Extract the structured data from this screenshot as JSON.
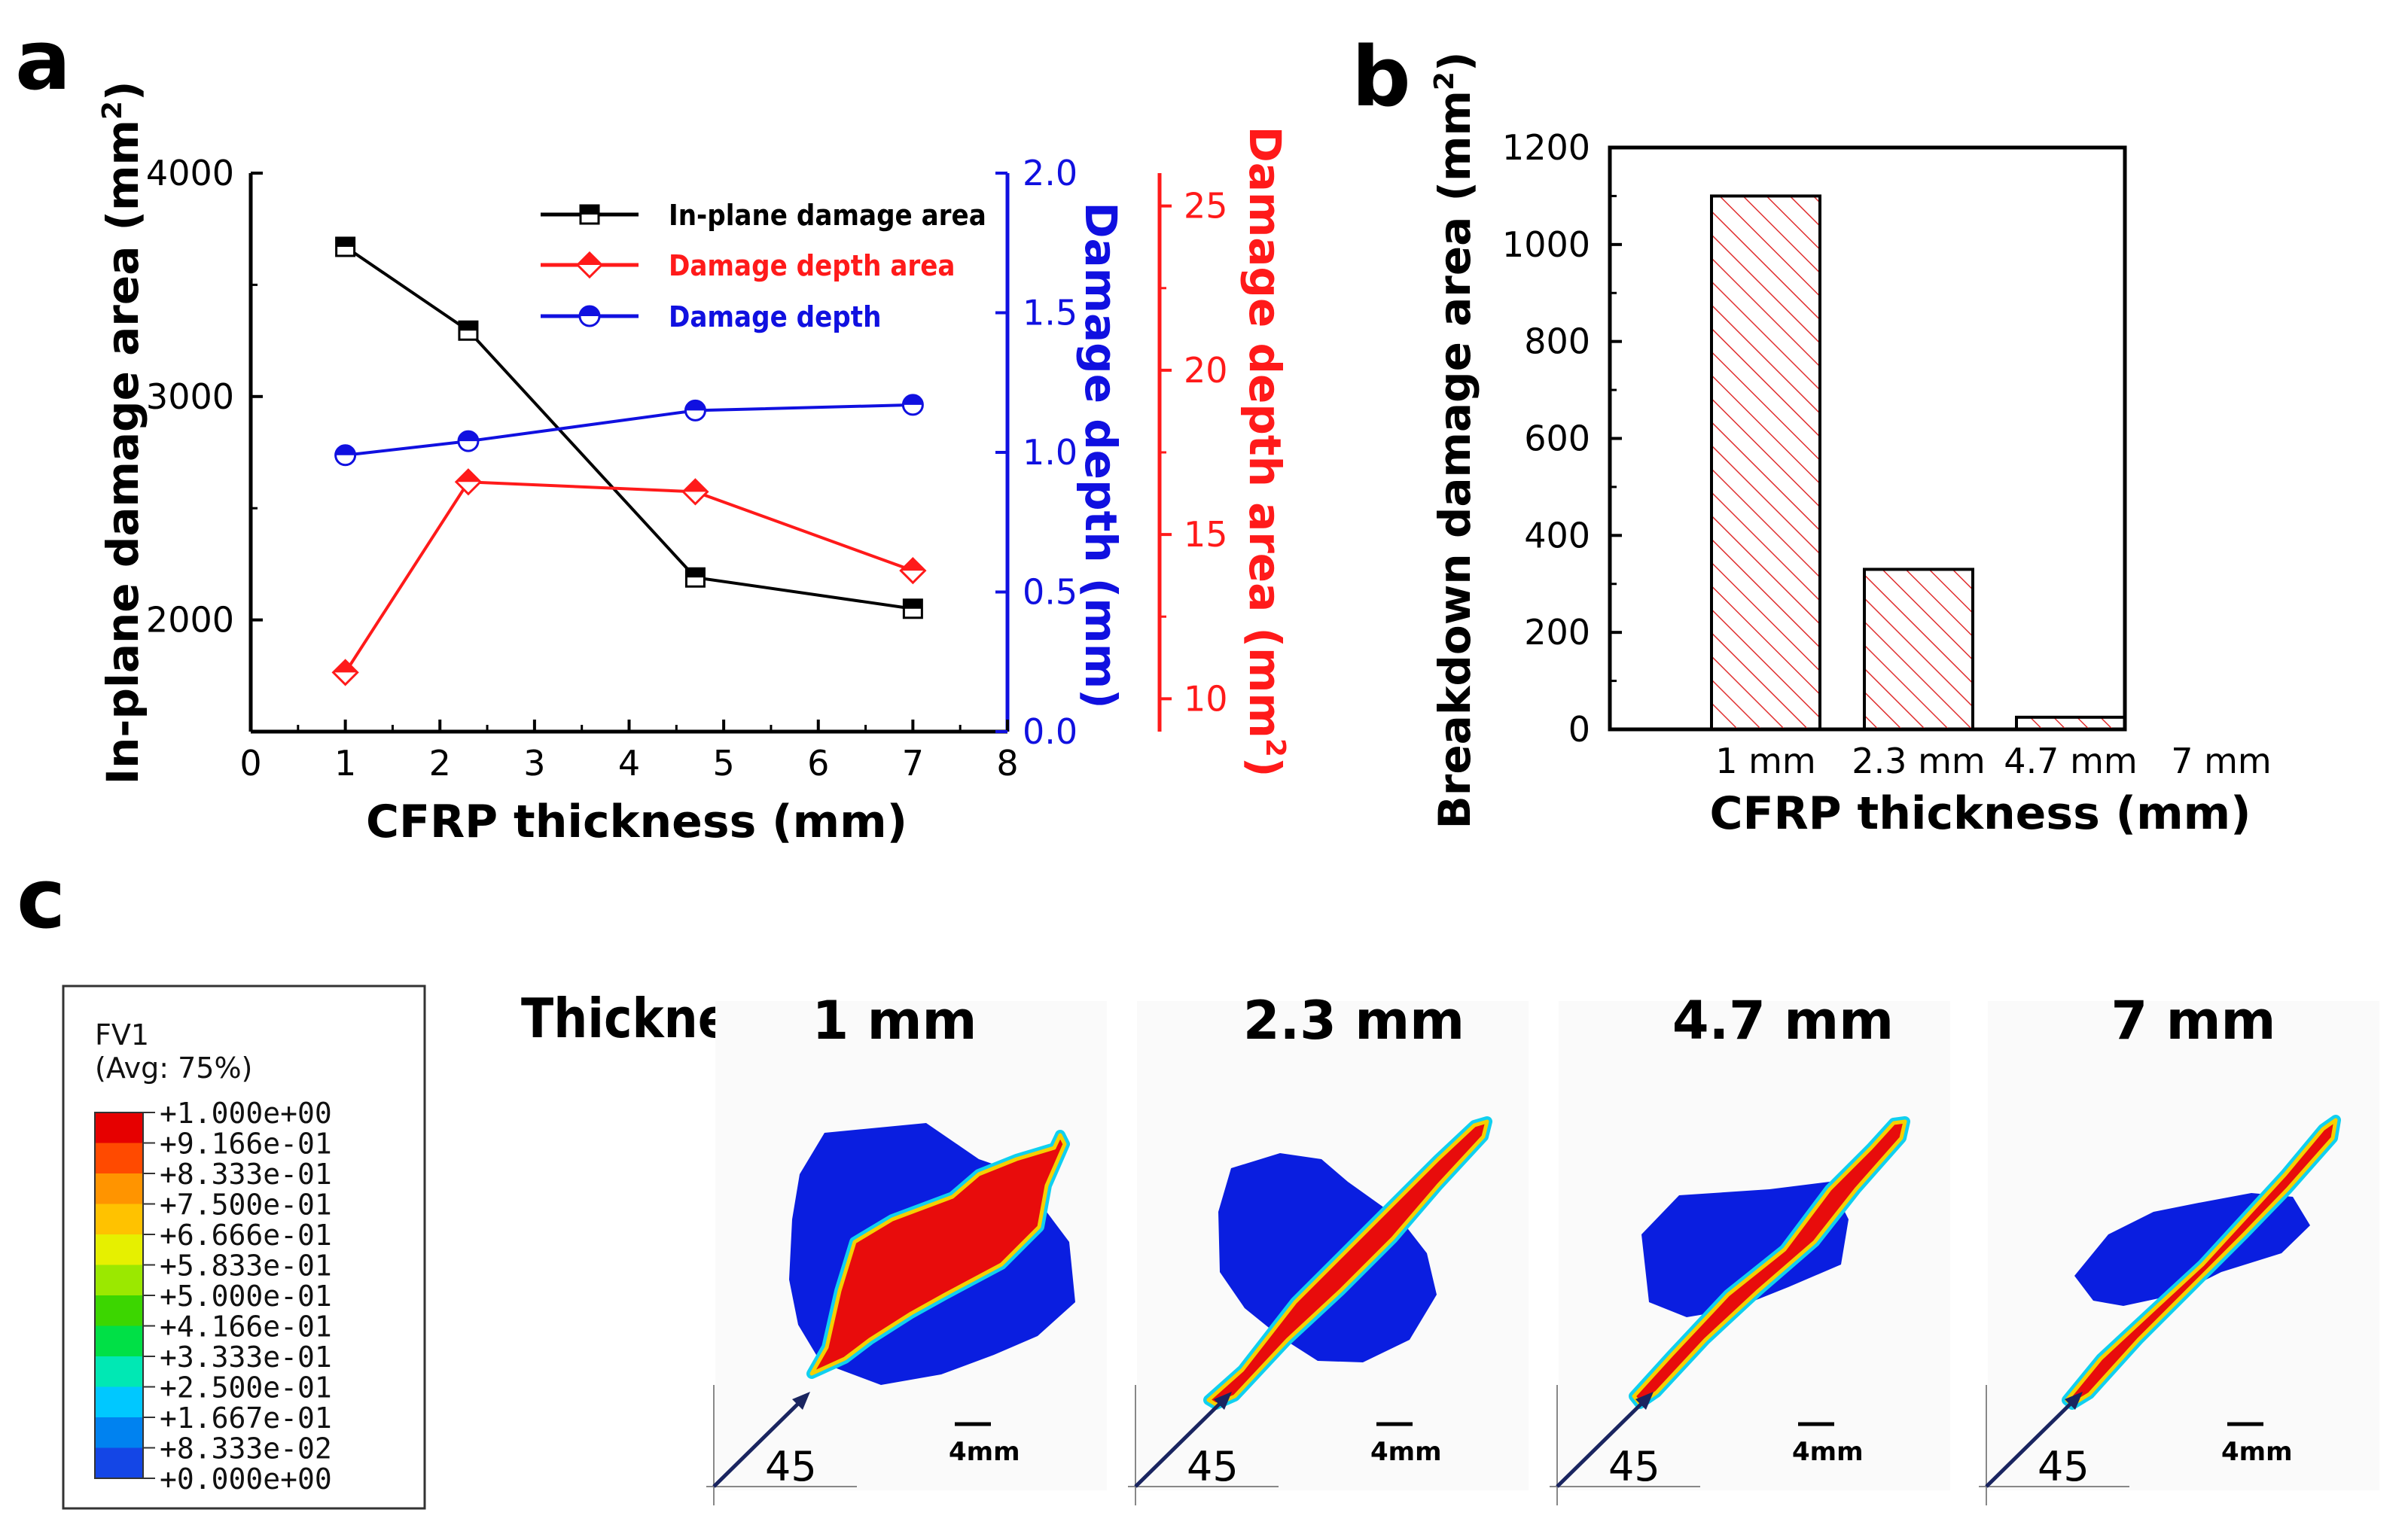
{
  "panels": {
    "a": "a",
    "b": "b",
    "c": "c"
  },
  "colors": {
    "black": "#000000",
    "red": "#ff1a1a",
    "blue": "#1010e0",
    "hatch": "#e03030",
    "fem_blue": "#0a1ee0",
    "fem_red": "#e80c0c"
  },
  "chart_data": [
    {
      "type": "line",
      "id": "a",
      "xlabel": "CFRP thickness (mm)",
      "xlim": [
        0,
        8
      ],
      "xticks": [
        "0",
        "1",
        "2",
        "3",
        "4",
        "5",
        "6",
        "7",
        "8"
      ],
      "axes": {
        "left": {
          "label_main": "In-plane damage area (mm",
          "label_sup": "2",
          "label_end": ")",
          "ylim": [
            1500,
            4000
          ],
          "ticks": [
            "2000",
            "3000",
            "4000"
          ]
        },
        "right1": {
          "label": "Damage depth (mm)",
          "ylim": [
            0,
            2
          ],
          "ticks": [
            "0.0",
            "0.5",
            "1.0",
            "1.5",
            "2.0"
          ]
        },
        "right2": {
          "label_main": "Damage depth area (mm",
          "label_sup": "2",
          "label_end": ")",
          "ylim": [
            9,
            26
          ],
          "ticks": [
            "10",
            "15",
            "20",
            "25"
          ]
        }
      },
      "series": [
        {
          "name": "In-plane damage area",
          "axis": "left",
          "marker": "square",
          "color": "#000000",
          "x": [
            1,
            2.3,
            4.7,
            7
          ],
          "y": [
            3670,
            3295,
            2190,
            2050
          ]
        },
        {
          "name": "Damage depth area",
          "axis": "right2",
          "marker": "diamond",
          "color": "#ff1a1a",
          "x": [
            1,
            2.3,
            4.7,
            7
          ],
          "y": [
            10.8,
            16.6,
            16.3,
            13.9
          ]
        },
        {
          "name": "Damage depth",
          "axis": "right1",
          "marker": "circle",
          "color": "#1010e0",
          "x": [
            1,
            2.3,
            4.7,
            7
          ],
          "y": [
            0.99,
            1.04,
            1.15,
            1.17
          ]
        }
      ]
    },
    {
      "type": "bar",
      "id": "b",
      "xlabel": "CFRP thickness (mm)",
      "ylabel_main": "Breakdown damage area (mm",
      "ylabel_sup": "2",
      "ylabel_end": ")",
      "ylim": [
        0,
        1200
      ],
      "yticks": [
        "0",
        "200",
        "400",
        "600",
        "800",
        "1000",
        "1200"
      ],
      "categories": [
        "1 mm",
        "2.3 mm",
        "4.7 mm",
        "7 mm"
      ],
      "values": [
        1100,
        330,
        25,
        0
      ]
    }
  ],
  "legend_c": {
    "title": "FV1",
    "subtitle": "(Avg: 75%)",
    "labels": [
      "+1.000e+00",
      "+9.166e-01",
      "+8.333e-01",
      "+7.500e-01",
      "+6.666e-01",
      "+5.833e-01",
      "+5.000e-01",
      "+4.166e-01",
      "+3.333e-01",
      "+2.500e-01",
      "+1.667e-01",
      "+8.333e-02",
      "+0.000e+00"
    ],
    "colors": [
      "#e60000",
      "#ff4a00",
      "#ff9400",
      "#ffc200",
      "#e6f000",
      "#9be800",
      "#3cd600",
      "#00e046",
      "#00e8b4",
      "#00c8ff",
      "#0082f0",
      "#1446e6",
      "#0a1ee0"
    ]
  },
  "panel_c": {
    "heading": "Thickness:",
    "items": [
      {
        "label": "1 mm",
        "angle": "45",
        "scale": "4mm"
      },
      {
        "label": "2.3 mm",
        "angle": "45",
        "scale": "4mm"
      },
      {
        "label": "4.7 mm",
        "angle": "45",
        "scale": "4mm"
      },
      {
        "label": "7 mm",
        "angle": "45",
        "scale": "4mm"
      }
    ]
  }
}
